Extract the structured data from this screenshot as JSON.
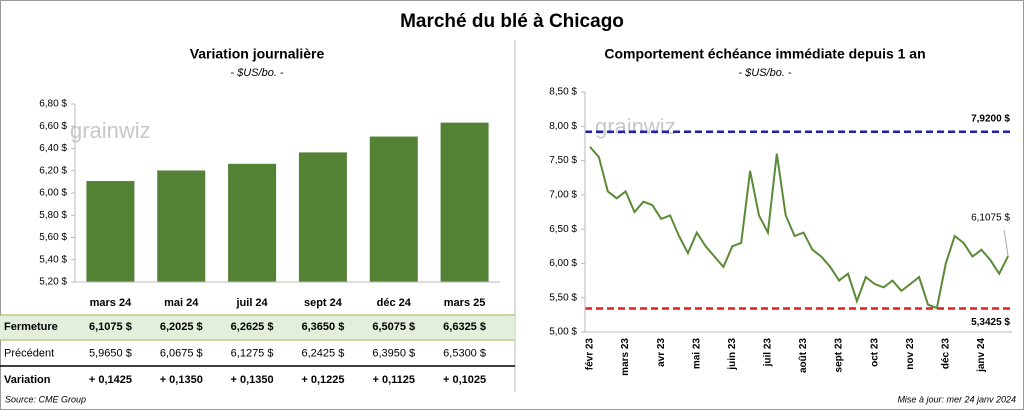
{
  "title": "Marché du blé à Chicago",
  "logo": "grainwiz",
  "chart_data": [
    {
      "type": "bar",
      "title": "Variation journalière",
      "subtitle": "- $US/bo. -",
      "categories": [
        "mars 24",
        "mai 24",
        "juil 24",
        "sept 24",
        "déc 24",
        "mars 25"
      ],
      "values": [
        6.1075,
        6.2025,
        6.2625,
        6.365,
        6.5075,
        6.6325
      ],
      "color": "#548235",
      "grid": false,
      "ylim": [
        5.2,
        6.8
      ],
      "yticks": [
        {
          "value": 5.2,
          "label": "5,20 $"
        },
        {
          "value": 5.4,
          "label": "5,40 $"
        },
        {
          "value": 5.6,
          "label": "5,60 $"
        },
        {
          "value": 5.8,
          "label": "5,80 $"
        },
        {
          "value": 6.0,
          "label": "6,00 $"
        },
        {
          "value": 6.2,
          "label": "6,20 $"
        },
        {
          "value": 6.4,
          "label": "6,40 $"
        },
        {
          "value": 6.6,
          "label": "6,60 $"
        },
        {
          "value": 6.8,
          "label": "6,80 $"
        }
      ]
    },
    {
      "type": "line",
      "title": "Comportement  échéance immédiate depuis 1 an",
      "subtitle": "- $US/bo. -",
      "categories": [
        "févr 23",
        null,
        null,
        null,
        "mars 23",
        null,
        null,
        null,
        "avr 23",
        null,
        null,
        null,
        "mai 23",
        null,
        null,
        null,
        "juin 23",
        null,
        null,
        null,
        "juil 23",
        null,
        null,
        null,
        "août 23",
        null,
        null,
        null,
        "sept 23",
        null,
        null,
        null,
        "oct 23",
        null,
        null,
        null,
        "nov 23",
        null,
        null,
        null,
        "déc 23",
        null,
        null,
        null,
        "janv 24",
        null,
        null,
        null
      ],
      "series": [
        {
          "color": "#5a8a35",
          "values": [
            7.7,
            7.55,
            7.05,
            6.95,
            7.05,
            6.75,
            6.9,
            6.85,
            6.65,
            6.7,
            6.4,
            6.15,
            6.45,
            6.25,
            6.1,
            5.95,
            6.25,
            6.3,
            7.35,
            6.7,
            6.45,
            7.6,
            6.7,
            6.4,
            6.45,
            6.2,
            6.1,
            5.95,
            5.75,
            5.85,
            5.45,
            5.8,
            5.7,
            5.65,
            5.75,
            5.6,
            5.7,
            5.8,
            5.4,
            5.35,
            6.0,
            6.4,
            6.3,
            6.1,
            6.2,
            6.05,
            5.85,
            6.1075
          ]
        }
      ],
      "annotation": "6,1075 $",
      "reference_lines": [
        {
          "value": 7.92,
          "label": "7,9200 $",
          "color": "#2020b0"
        },
        {
          "value": 5.3425,
          "label": "5,3425 $",
          "color": "#e02020"
        }
      ],
      "grid": false,
      "ylim": [
        5.0,
        8.5
      ],
      "yticks": [
        {
          "value": 5.0,
          "label": "5,00 $"
        },
        {
          "value": 5.5,
          "label": "5,50 $"
        },
        {
          "value": 6.0,
          "label": "6,00 $"
        },
        {
          "value": 6.5,
          "label": "6,50 $"
        },
        {
          "value": 7.0,
          "label": "7,00 $"
        },
        {
          "value": 7.5,
          "label": "7,50 $"
        },
        {
          "value": 8.0,
          "label": "8,00 $"
        },
        {
          "value": 8.5,
          "label": "8,50 $"
        }
      ]
    }
  ],
  "table": {
    "rows": [
      {
        "label": "Fermeture",
        "cells": [
          "6,1075  $",
          "6,2025  $",
          "6,2625  $",
          "6,3650  $",
          "6,5075  $",
          "6,6325  $"
        ]
      },
      {
        "label": "Précédent",
        "cells": [
          "5,9650  $",
          "6,0675  $",
          "6,1275  $",
          "6,2425  $",
          "6,3950  $",
          "6,5300  $"
        ]
      },
      {
        "label": "Variation",
        "cells": [
          "+ 0,1425",
          "+ 0,1350",
          "+ 0,1350",
          "+ 0,1225",
          "+ 0,1125",
          "+ 0,1025"
        ]
      }
    ]
  },
  "footer": {
    "source": "Source: CME Group",
    "updated": "Mise à jour: mer 24 janv 2024"
  }
}
